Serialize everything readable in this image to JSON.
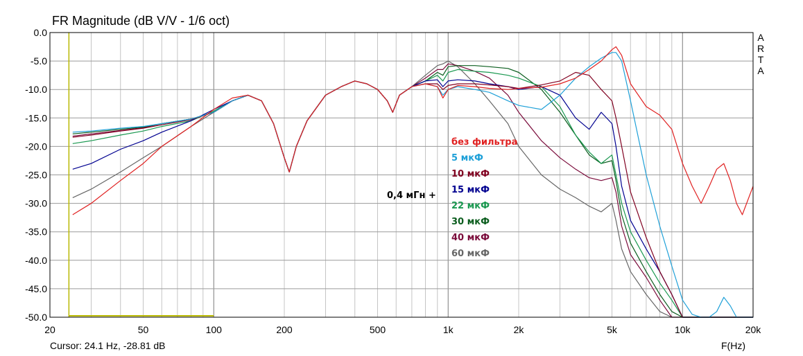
{
  "chart_data": {
    "type": "line",
    "title": "FR Magnitude (dB V/V - 1/6 oct)",
    "xlabel": "F(Hz)",
    "ylabel": "",
    "x_scale": "log",
    "xlim": [
      20,
      20000
    ],
    "ylim": [
      -50,
      0
    ],
    "grid": true,
    "x_tick_labels": [
      "20",
      "50",
      "100",
      "200",
      "500",
      "1k",
      "2k",
      "5k",
      "10k",
      "20k"
    ],
    "x_tick_values": [
      20,
      50,
      100,
      200,
      500,
      1000,
      2000,
      5000,
      10000,
      20000
    ],
    "y_tick_labels": [
      "0.0",
      "-5.0",
      "-10.0",
      "-15.0",
      "-20.0",
      "-25.0",
      "-30.0",
      "-35.0",
      "-40.0",
      "-45.0",
      "-50.0"
    ],
    "y_tick_values": [
      0,
      -5,
      -10,
      -15,
      -20,
      -25,
      -30,
      -35,
      -40,
      -45,
      -50
    ],
    "cursor_text": "Cursor: 24.1 Hz, -28.81 dB",
    "cursor_x": 24.1,
    "cursor_line_x": [
      24.1,
      100
    ],
    "watermark": [
      "A",
      "R",
      "T",
      "A"
    ],
    "annotation": "0,4 мГн +",
    "x": [
      25,
      30,
      40,
      50,
      60,
      80,
      100,
      120,
      140,
      160,
      180,
      200,
      210,
      225,
      250,
      300,
      350,
      400,
      450,
      500,
      550,
      580,
      620,
      700,
      800,
      900,
      950,
      1000,
      1100,
      1300,
      1500,
      1800,
      2000,
      2500,
      3000,
      3500,
      4000,
      4500,
      5000,
      5200,
      5500,
      6000,
      7000,
      8000,
      9000,
      10000,
      11000,
      12000,
      13000,
      14000,
      15000,
      16000,
      17000,
      18000,
      20000
    ],
    "series": [
      {
        "name": "без фильтра",
        "color": "#e02020",
        "values": [
          -32,
          -30,
          -26,
          -23,
          -20,
          -16.5,
          -13.5,
          -11.5,
          -11,
          -12,
          -16,
          -22,
          -24.5,
          -20,
          -15.5,
          -11,
          -9.5,
          -8.5,
          -9,
          -10,
          -12,
          -14,
          -11,
          -9.5,
          -9,
          -9.5,
          -11.5,
          -10,
          -9.3,
          -9.5,
          -9.8,
          -10,
          -9.8,
          -9.6,
          -9,
          -8,
          -6.5,
          -5,
          -3,
          -2.5,
          -4,
          -9,
          -13,
          -14.5,
          -17,
          -23,
          -27,
          -30,
          -27,
          -24,
          -23,
          -26,
          -30,
          -32,
          -27
        ]
      },
      {
        "name": "5 мкФ",
        "color": "#1ea0d8",
        "values": [
          -17.5,
          -17.3,
          -16.8,
          -16.5,
          -16,
          -15.2,
          -14,
          -12,
          -11,
          -12,
          -16,
          -22,
          -24.5,
          -20,
          -15.5,
          -11,
          -9.5,
          -8.5,
          -9,
          -10,
          -12,
          -14,
          -11,
          -9.5,
          -9,
          -9.5,
          -11,
          -10,
          -9.5,
          -10,
          -10.5,
          -12,
          -12.8,
          -13.5,
          -11,
          -8,
          -6,
          -4.5,
          -3.5,
          -3.5,
          -5,
          -12,
          -25,
          -34,
          -41,
          -47,
          -49.5,
          -50,
          -50,
          -49,
          -46.5,
          -48,
          -50,
          -50,
          -50
        ]
      },
      {
        "name": "10 мкФ",
        "color": "#800020",
        "values": [
          -18.4,
          -18,
          -17.3,
          -16.8,
          -16.2,
          -15.3,
          -14,
          -12,
          -11,
          -12,
          -16,
          -22,
          -24.5,
          -20,
          -15.5,
          -11,
          -9.5,
          -8.5,
          -9,
          -10,
          -12,
          -14,
          -11,
          -9.5,
          -9,
          -9,
          -10,
          -9.3,
          -9,
          -9,
          -9.2,
          -9.5,
          -9.8,
          -9.2,
          -8.5,
          -7,
          -7.5,
          -10,
          -12,
          -15,
          -20,
          -28,
          -36,
          -42,
          -46,
          -50,
          -50,
          -50,
          -50,
          -50,
          -50,
          -50,
          -50,
          -50,
          -50
        ]
      },
      {
        "name": "15 мкФ",
        "color": "#000090",
        "values": [
          -24,
          -23,
          -20.5,
          -19,
          -17.5,
          -15.5,
          -13.5,
          -12,
          -11,
          -12,
          -16,
          -22,
          -24.5,
          -20,
          -15.5,
          -11,
          -9.5,
          -8.5,
          -9,
          -10,
          -12,
          -14,
          -11,
          -9.5,
          -8.5,
          -8.3,
          -9.5,
          -8.5,
          -8.3,
          -8.5,
          -9,
          -9.5,
          -10,
          -9.5,
          -11,
          -15,
          -17,
          -14,
          -16,
          -20,
          -27,
          -33,
          -38,
          -42,
          -46,
          -50,
          -50,
          -50,
          -50,
          -50,
          -50,
          -50,
          -50,
          -50,
          -50
        ]
      },
      {
        "name": "22 мкФ",
        "color": "#1a9850",
        "values": [
          -19.5,
          -19,
          -18,
          -17.3,
          -16.5,
          -15.5,
          -13.8,
          -12,
          -11,
          -12,
          -16,
          -22,
          -24.5,
          -20,
          -15.5,
          -11,
          -9.5,
          -8.5,
          -9,
          -10,
          -12,
          -14,
          -11,
          -9.5,
          -8.5,
          -7.5,
          -8.5,
          -7,
          -6.5,
          -6.8,
          -7,
          -7.5,
          -8,
          -9.5,
          -13,
          -18,
          -21,
          -23,
          -21.5,
          -25,
          -30,
          -35,
          -40,
          -44,
          -47,
          -50,
          -50,
          -50,
          -50,
          -50,
          -50,
          -50,
          -50,
          -50,
          -50
        ]
      },
      {
        "name": "30 мкФ",
        "color": "#0b5d1e",
        "values": [
          -17.8,
          -17.5,
          -17,
          -16.6,
          -16,
          -15.2,
          -14,
          -12,
          -11,
          -12,
          -16,
          -22,
          -24.5,
          -20,
          -15.5,
          -11,
          -9.5,
          -8.5,
          -9,
          -10,
          -12,
          -14,
          -11,
          -9.5,
          -8.5,
          -7,
          -7.5,
          -6,
          -5.8,
          -5.8,
          -6,
          -6.3,
          -7,
          -10,
          -14,
          -18,
          -21.5,
          -23,
          -22.5,
          -26,
          -32,
          -37,
          -42,
          -46,
          -49,
          -50,
          -50,
          -50,
          -50,
          -50,
          -50,
          -50,
          -50,
          -50,
          -50
        ]
      },
      {
        "name": "40 мкФ",
        "color": "#7a0a3a",
        "values": [
          -18.2,
          -17.8,
          -17.2,
          -16.7,
          -16,
          -15.2,
          -14,
          -12,
          -11,
          -12,
          -16,
          -22,
          -24.5,
          -20,
          -15.5,
          -11,
          -9.5,
          -8.5,
          -9,
          -10,
          -12,
          -14,
          -11,
          -9.5,
          -8,
          -6.5,
          -6.5,
          -5.5,
          -5.8,
          -6.8,
          -8,
          -11,
          -14,
          -19,
          -22,
          -24,
          -25.5,
          -26,
          -25.5,
          -28,
          -34,
          -39,
          -43,
          -47,
          -50,
          -50,
          -50,
          -50,
          -50,
          -50,
          -50,
          -50,
          -50,
          -50,
          -50
        ]
      },
      {
        "name": "60 мкФ",
        "color": "#666666",
        "values": [
          -29,
          -27.5,
          -24.5,
          -22,
          -20,
          -16.5,
          -14,
          -12,
          -11,
          -12,
          -16,
          -22,
          -24.5,
          -20,
          -15.5,
          -11,
          -9.5,
          -8.5,
          -9,
          -10,
          -12,
          -14,
          -11,
          -9.5,
          -7.5,
          -5.8,
          -5.5,
          -5,
          -6,
          -9,
          -12,
          -16,
          -20,
          -25,
          -27.5,
          -29,
          -30.5,
          -31.5,
          -30,
          -33,
          -38,
          -42,
          -46,
          -49,
          -50,
          -50,
          -50,
          -50,
          -50,
          -50,
          -50,
          -50,
          -50,
          -50,
          -50
        ]
      }
    ]
  }
}
